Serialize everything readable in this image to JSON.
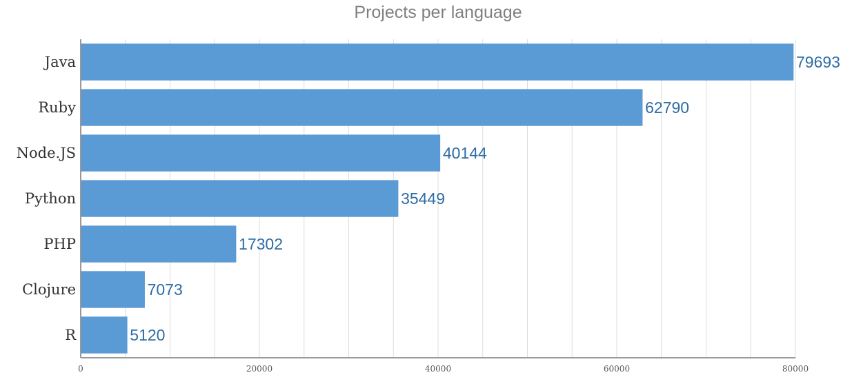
{
  "chart_data": {
    "type": "bar",
    "orientation": "horizontal",
    "title": "Projects per language",
    "categories": [
      "Java",
      "Ruby",
      "Node.JS",
      "Python",
      "PHP",
      "Clojure",
      "R"
    ],
    "values": [
      79693,
      62790,
      40144,
      35449,
      17302,
      7073,
      5120
    ],
    "xlim": [
      0,
      80000
    ],
    "xticks": [
      0,
      20000,
      40000,
      60000,
      80000
    ],
    "xtick_labels": [
      "0",
      "20000",
      "40000",
      "60000",
      "80000"
    ],
    "grid": true,
    "legend": "none",
    "colors": {
      "bar": "#5b9bd5",
      "value_label": "#2e6da4",
      "grid": "#dcdcdc",
      "axis": "#999999"
    }
  }
}
